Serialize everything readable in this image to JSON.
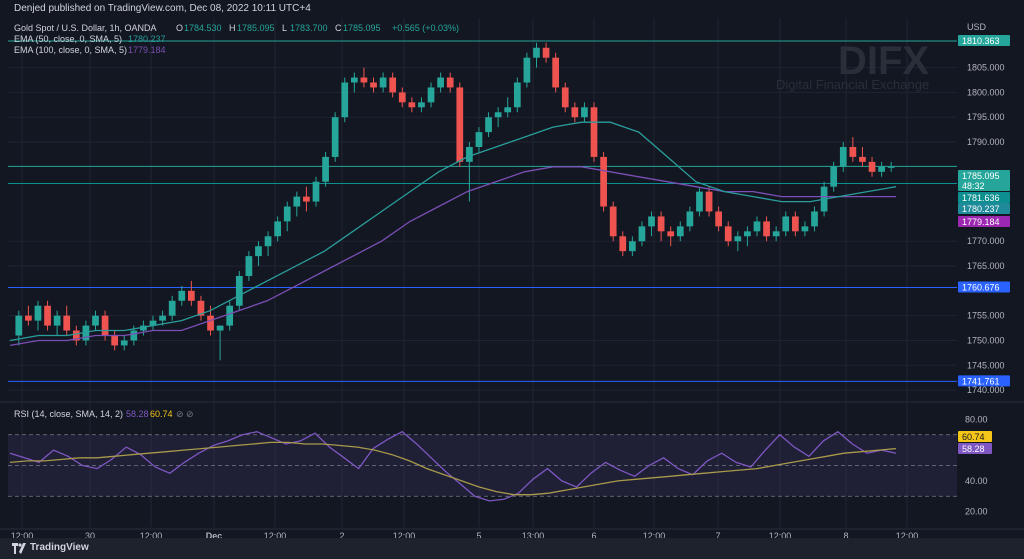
{
  "published_line": "Denjed published on TradingView.com, Dec 08, 2022 10:11 UTC+4",
  "legend": {
    "symbol": "Gold Spot / U.S. Dollar, 1h, OANDA",
    "o_label": "O",
    "o_value": "1784.530",
    "h_label": "H",
    "h_value": "1785.095",
    "l_label": "L",
    "l_value": "1783.700",
    "c_label": "C",
    "c_value": "1785.095",
    "change": "+0.565 (+0.03%)",
    "ema50_label": "EMA (50, close, 0, SMA, 5)",
    "ema50_value": "1780.237",
    "ema100_label": "EMA (100, close, 0, SMA, 5)",
    "ema100_value": "1779.184"
  },
  "watermark": {
    "brand": "DIFX",
    "tagline": "Digital Financial Exchange"
  },
  "currency": "USD",
  "price_axis": [
    "1805.000",
    "1800.000",
    "1795.000",
    "1790.000",
    "1770.000",
    "1765.000",
    "1755.000",
    "1750.000",
    "1745.000",
    "1740.000"
  ],
  "price_labels": [
    {
      "text": "1810.363",
      "color": "#26a69a",
      "kind": "level"
    },
    {
      "text": "1785.095",
      "color": "#26a69a",
      "kind": "price"
    },
    {
      "text": "48:32",
      "color": "#26a69a",
      "kind": "timer"
    },
    {
      "text": "1781.636",
      "color": "#0e8f8f",
      "kind": "level"
    },
    {
      "text": "1780.237",
      "color": "#1f8a9a",
      "kind": "ema50"
    },
    {
      "text": "1779.184",
      "color": "#9c27b0",
      "kind": "ema100"
    },
    {
      "text": "1760.676",
      "color": "#2962ff",
      "kind": "level"
    },
    {
      "text": "1741.761",
      "color": "#2962ff",
      "kind": "level"
    }
  ],
  "rsi": {
    "label": "RSI (14, close, SMA, 14, 2)",
    "value1": "58.28",
    "value2": "60.74",
    "axis": [
      "80.00",
      "40.00",
      "20.00"
    ],
    "tag_value2": "60.74",
    "tag_value1": "58.28"
  },
  "time_axis": [
    "12:00",
    "30",
    "12:00",
    "Dec",
    "12:00",
    "2",
    "12:00",
    "5",
    "13:00",
    "6",
    "12:00",
    "7",
    "12:00",
    "8",
    "12:00"
  ],
  "footer": "TradingView",
  "colors": {
    "up": "#26a69a",
    "down": "#ef5350",
    "ema50": "#2a9d9b",
    "ema100": "#7b4fb5",
    "rsi": "#7e57c2",
    "rsi_ma": "#a89a4a",
    "bg": "#131722"
  },
  "chart_data": {
    "type": "candlestick",
    "symbol": "XAUUSD",
    "timeframe": "1h",
    "ylim": [
      1738,
      1815
    ],
    "horizontal_levels": [
      1810.363,
      1785.095,
      1781.636,
      1760.676,
      1741.761
    ],
    "ohlc": [
      [
        1751,
        1756,
        1749,
        1755
      ],
      [
        1755,
        1757,
        1753,
        1754
      ],
      [
        1754,
        1758,
        1752,
        1757
      ],
      [
        1757,
        1758,
        1752,
        1753
      ],
      [
        1753,
        1756,
        1751,
        1755
      ],
      [
        1755,
        1757,
        1751,
        1752
      ],
      [
        1752,
        1753,
        1749,
        1750
      ],
      [
        1750,
        1754,
        1749,
        1753
      ],
      [
        1753,
        1756,
        1752,
        1755
      ],
      [
        1755,
        1756,
        1750,
        1751
      ],
      [
        1751,
        1752,
        1748,
        1749
      ],
      [
        1749,
        1751,
        1748,
        1750
      ],
      [
        1750,
        1753,
        1749,
        1752
      ],
      [
        1752,
        1754,
        1751,
        1753
      ],
      [
        1753,
        1755,
        1752,
        1754
      ],
      [
        1754,
        1756,
        1753,
        1755
      ],
      [
        1755,
        1759,
        1754,
        1758
      ],
      [
        1758,
        1761,
        1757,
        1760
      ],
      [
        1760,
        1762,
        1757,
        1758
      ],
      [
        1758,
        1759,
        1754,
        1755
      ],
      [
        1755,
        1757,
        1751,
        1752
      ],
      [
        1752,
        1753,
        1746,
        1753
      ],
      [
        1753,
        1758,
        1752,
        1757
      ],
      [
        1757,
        1764,
        1756,
        1763
      ],
      [
        1763,
        1768,
        1762,
        1767
      ],
      [
        1767,
        1770,
        1765,
        1769
      ],
      [
        1769,
        1772,
        1767,
        1771
      ],
      [
        1771,
        1775,
        1770,
        1774
      ],
      [
        1774,
        1778,
        1772,
        1777
      ],
      [
        1777,
        1780,
        1775,
        1779
      ],
      [
        1779,
        1781,
        1776,
        1778
      ],
      [
        1778,
        1783,
        1777,
        1782
      ],
      [
        1782,
        1788,
        1781,
        1787
      ],
      [
        1787,
        1796,
        1786,
        1795
      ],
      [
        1795,
        1803,
        1794,
        1802
      ],
      [
        1802,
        1804,
        1800,
        1803
      ],
      [
        1803,
        1805,
        1801,
        1802
      ],
      [
        1802,
        1803,
        1800,
        1801
      ],
      [
        1801,
        1804,
        1800,
        1803
      ],
      [
        1803,
        1804,
        1799,
        1800
      ],
      [
        1800,
        1801,
        1797,
        1798
      ],
      [
        1798,
        1799,
        1796,
        1797
      ],
      [
        1797,
        1799,
        1796,
        1798
      ],
      [
        1798,
        1802,
        1797,
        1801
      ],
      [
        1801,
        1804,
        1800,
        1803
      ],
      [
        1803,
        1804,
        1800,
        1801
      ],
      [
        1801,
        1802,
        1785,
        1786
      ],
      [
        1786,
        1790,
        1778,
        1789
      ],
      [
        1789,
        1793,
        1788,
        1792
      ],
      [
        1792,
        1796,
        1791,
        1795
      ],
      [
        1795,
        1797,
        1793,
        1796
      ],
      [
        1796,
        1799,
        1795,
        1797
      ],
      [
        1797,
        1803,
        1796,
        1802
      ],
      [
        1802,
        1808,
        1801,
        1807
      ],
      [
        1807,
        1810,
        1805,
        1809
      ],
      [
        1809,
        1810,
        1806,
        1807
      ],
      [
        1807,
        1808,
        1800,
        1801
      ],
      [
        1801,
        1802,
        1796,
        1797
      ],
      [
        1797,
        1798,
        1794,
        1795
      ],
      [
        1795,
        1798,
        1794,
        1797
      ],
      [
        1797,
        1798,
        1786,
        1787
      ],
      [
        1787,
        1788,
        1776,
        1777
      ],
      [
        1777,
        1778,
        1770,
        1771
      ],
      [
        1771,
        1772,
        1767,
        1768
      ],
      [
        1768,
        1771,
        1767,
        1770
      ],
      [
        1770,
        1774,
        1769,
        1773
      ],
      [
        1773,
        1776,
        1771,
        1775
      ],
      [
        1775,
        1776,
        1770,
        1772
      ],
      [
        1772,
        1773,
        1769,
        1771
      ],
      [
        1771,
        1774,
        1770,
        1773
      ],
      [
        1773,
        1777,
        1772,
        1776
      ],
      [
        1776,
        1781,
        1775,
        1780
      ],
      [
        1780,
        1781,
        1775,
        1776
      ],
      [
        1776,
        1777,
        1772,
        1773
      ],
      [
        1773,
        1774,
        1769,
        1770
      ],
      [
        1770,
        1772,
        1768,
        1771
      ],
      [
        1771,
        1773,
        1769,
        1772
      ],
      [
        1772,
        1775,
        1771,
        1774
      ],
      [
        1774,
        1775,
        1770,
        1771
      ],
      [
        1771,
        1773,
        1770,
        1772
      ],
      [
        1772,
        1776,
        1771,
        1775
      ],
      [
        1775,
        1776,
        1771,
        1772
      ],
      [
        1772,
        1774,
        1771,
        1773
      ],
      [
        1773,
        1777,
        1772,
        1776
      ],
      [
        1776,
        1782,
        1775,
        1781
      ],
      [
        1781,
        1786,
        1780,
        1785
      ],
      [
        1785,
        1790,
        1784,
        1789
      ],
      [
        1789,
        1791,
        1786,
        1787
      ],
      [
        1787,
        1789,
        1785,
        1786
      ],
      [
        1786,
        1787,
        1783,
        1784
      ],
      [
        1784,
        1786,
        1783,
        1785
      ],
      [
        1785,
        1786,
        1784,
        1785
      ]
    ],
    "ema50": [
      1750,
      1751,
      1751,
      1752,
      1752,
      1753,
      1754,
      1756,
      1759,
      1762,
      1765,
      1768,
      1772,
      1776,
      1780,
      1784,
      1787,
      1789,
      1791,
      1793,
      1794,
      1794,
      1792,
      1787,
      1782,
      1780,
      1779,
      1778,
      1778,
      1779,
      1780,
      1781
    ],
    "ema100": [
      1749,
      1750,
      1750,
      1751,
      1751,
      1752,
      1752,
      1754,
      1756,
      1758,
      1761,
      1764,
      1767,
      1770,
      1774,
      1777,
      1780,
      1782,
      1784,
      1785,
      1785,
      1784,
      1783,
      1782,
      1781,
      1780,
      1780,
      1779,
      1779,
      1779,
      1779,
      1779
    ],
    "rsi_values": [
      58,
      55,
      52,
      60,
      56,
      50,
      48,
      54,
      62,
      57,
      49,
      45,
      52,
      58,
      63,
      66,
      70,
      72,
      68,
      64,
      66,
      71,
      62,
      55,
      48,
      61,
      67,
      72,
      64,
      55,
      46,
      38,
      30,
      27,
      28,
      32,
      41,
      48,
      40,
      36,
      45,
      52,
      47,
      43,
      50,
      55,
      48,
      44,
      53,
      58,
      52,
      49,
      60,
      70,
      62,
      56,
      66,
      72,
      64,
      58,
      60,
      58
    ],
    "rsi_ma": [
      52,
      53,
      53,
      54,
      55,
      55,
      56,
      57,
      58,
      59,
      60,
      61,
      62,
      63,
      64,
      65,
      65,
      64,
      64,
      63,
      62,
      60,
      57,
      53,
      48,
      44,
      40,
      36,
      33,
      31,
      31,
      32,
      34,
      36,
      38,
      40,
      41,
      42,
      43,
      44,
      45,
      46,
      47,
      48,
      50,
      52,
      54,
      56,
      58,
      59,
      60,
      61
    ],
    "rsi_ylim": [
      10,
      90
    ],
    "x_ticks": [
      "12:00",
      "30",
      "12:00",
      "Dec",
      "12:00",
      "2",
      "12:00",
      "5",
      "13:00",
      "6",
      "12:00",
      "7",
      "12:00",
      "8",
      "12:00"
    ]
  }
}
